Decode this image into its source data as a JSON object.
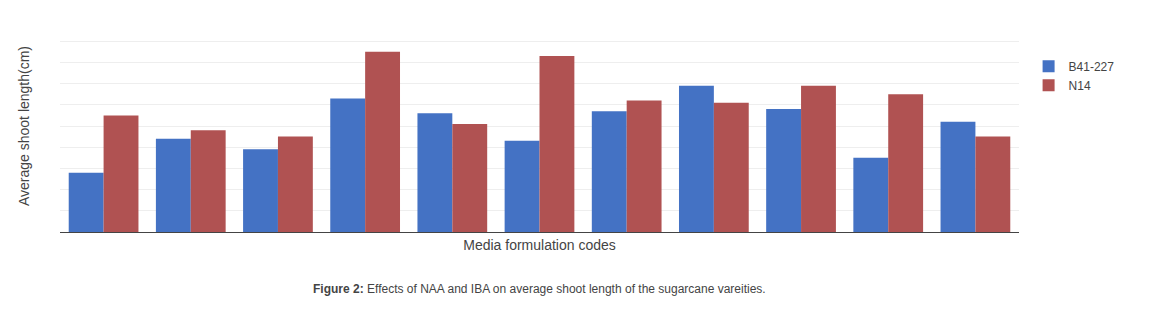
{
  "chart_data": {
    "type": "bar",
    "xlabel": "Media formulation codes",
    "ylabel": "Average shoot length(cm)",
    "categories": [
      null,
      null,
      null,
      null,
      null,
      null,
      null,
      null,
      null,
      null,
      null
    ],
    "series": [
      {
        "name": "B41-227",
        "color": "#4472C4",
        "values": [
          2.8,
          4.4,
          3.9,
          6.3,
          5.6,
          4.3,
          5.7,
          6.9,
          5.8,
          3.5,
          5.2
        ]
      },
      {
        "name": "N14",
        "color": "#B05252",
        "values": [
          5.5,
          4.8,
          4.5,
          8.5,
          5.1,
          8.3,
          6.2,
          6.1,
          6.9,
          6.5,
          4.5
        ]
      }
    ],
    "ylim": [
      0,
      10
    ],
    "yticks": [
      0,
      1,
      2,
      3,
      4,
      5,
      6,
      7,
      8,
      9,
      10
    ],
    "grid": true,
    "legend": "right",
    "tick_labels": false,
    "annotations": [
      "Figure 2:",
      "Effects of NAA and IBA on average shoot length of the sugarcane vareities."
    ]
  }
}
